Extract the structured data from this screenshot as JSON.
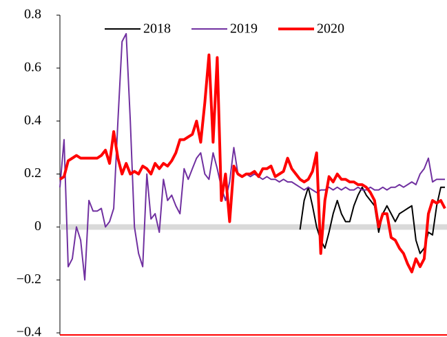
{
  "chart_data": {
    "type": "line",
    "ylim": [
      -0.4,
      0.8
    ],
    "yticks": [
      0.8,
      0.6,
      0.4,
      0.2,
      0,
      {
        "value": -0.2,
        "label": "−0.2"
      },
      {
        "value": -0.4,
        "label": "−0.4"
      }
    ],
    "legend": "top",
    "series": [
      {
        "name": "2018",
        "color": "#000000",
        "line_width": 2,
        "values": [
          null,
          null,
          null,
          null,
          null,
          null,
          null,
          null,
          null,
          null,
          null,
          null,
          null,
          null,
          null,
          null,
          null,
          null,
          null,
          null,
          null,
          null,
          null,
          null,
          null,
          null,
          null,
          null,
          null,
          null,
          null,
          null,
          null,
          null,
          null,
          null,
          null,
          null,
          null,
          null,
          null,
          null,
          null,
          null,
          null,
          null,
          null,
          null,
          null,
          null,
          null,
          null,
          null,
          null,
          null,
          null,
          null,
          null,
          -0.01,
          0.1,
          0.15,
          0.08,
          0.0,
          -0.05,
          -0.08,
          -0.02,
          0.05,
          0.1,
          0.05,
          0.02,
          0.02,
          0.08,
          0.12,
          0.15,
          0.12,
          0.1,
          0.08,
          -0.02,
          0.05,
          0.08,
          0.05,
          0.02,
          0.05,
          0.06,
          0.07,
          0.08,
          -0.05,
          -0.1,
          -0.08,
          -0.02,
          -0.03,
          0.08,
          0.15,
          0.15
        ]
      },
      {
        "name": "2019",
        "color": "#7030a0",
        "line_width": 2,
        "values": [
          0.15,
          0.33,
          -0.15,
          -0.12,
          0.0,
          -0.05,
          -0.2,
          0.1,
          0.06,
          0.06,
          0.07,
          0.0,
          0.02,
          0.07,
          0.4,
          0.7,
          0.73,
          0.4,
          0.0,
          -0.1,
          -0.15,
          0.2,
          0.03,
          0.05,
          -0.02,
          0.18,
          0.1,
          0.12,
          0.08,
          0.05,
          0.22,
          0.18,
          0.22,
          0.26,
          0.28,
          0.2,
          0.18,
          0.28,
          0.22,
          0.15,
          0.1,
          0.17,
          0.3,
          0.2,
          0.19,
          0.2,
          0.19,
          0.2,
          0.19,
          0.18,
          0.19,
          0.18,
          0.18,
          0.17,
          0.18,
          0.17,
          0.17,
          0.16,
          0.15,
          0.14,
          0.15,
          0.14,
          0.13,
          0.14,
          0.14,
          0.15,
          0.14,
          0.15,
          0.14,
          0.15,
          0.14,
          0.14,
          0.15,
          0.14,
          0.14,
          0.15,
          0.14,
          0.14,
          0.15,
          0.14,
          0.15,
          0.15,
          0.16,
          0.15,
          0.16,
          0.17,
          0.16,
          0.2,
          0.22,
          0.26,
          0.17,
          0.18,
          0.18,
          0.18
        ]
      },
      {
        "name": "2020",
        "color": "#ff0000",
        "line_width": 4,
        "values": [
          0.18,
          0.19,
          0.25,
          0.26,
          0.27,
          0.26,
          0.26,
          0.26,
          0.26,
          0.26,
          0.27,
          0.29,
          0.24,
          0.36,
          0.26,
          0.2,
          0.24,
          0.2,
          0.21,
          0.2,
          0.23,
          0.22,
          0.2,
          0.24,
          0.22,
          0.24,
          0.23,
          0.25,
          0.28,
          0.33,
          0.33,
          0.34,
          0.35,
          0.4,
          0.32,
          0.47,
          0.65,
          0.32,
          0.64,
          0.1,
          0.2,
          0.02,
          0.23,
          0.2,
          0.19,
          0.2,
          0.2,
          0.21,
          0.19,
          0.22,
          0.22,
          0.23,
          0.19,
          0.2,
          0.21,
          0.26,
          0.22,
          0.2,
          0.18,
          0.17,
          0.18,
          0.21,
          0.28,
          -0.1,
          0.1,
          0.19,
          0.17,
          0.2,
          0.18,
          0.18,
          0.17,
          0.17,
          0.16,
          0.16,
          0.15,
          0.13,
          0.1,
          0.0,
          0.05,
          0.05,
          -0.04,
          -0.05,
          -0.08,
          -0.1,
          -0.14,
          -0.17,
          -0.12,
          -0.15,
          -0.12,
          0.05,
          0.1,
          0.09,
          0.1,
          0.07
        ]
      }
    ]
  }
}
